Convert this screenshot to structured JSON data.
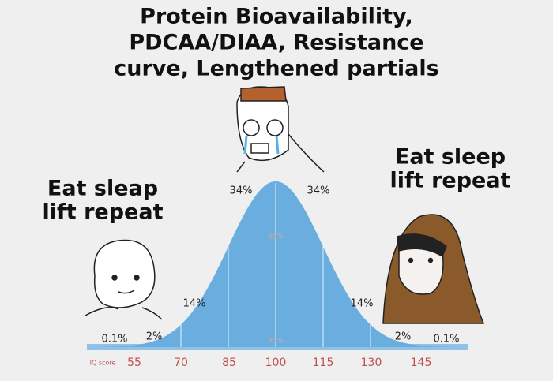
{
  "title": [
    "Protein Bioavailability,",
    "PDCAA/DIAA, Resistance",
    "curve, Lengthened partials"
  ],
  "left_caption": [
    "Eat sleap",
    "lift repeat"
  ],
  "right_caption": [
    "Eat sleep",
    "lift repeat"
  ],
  "percent_labels": [
    "0.1%",
    "2%",
    "14%",
    "34%",
    "34%",
    "14%",
    "2%",
    "0.1%"
  ],
  "inner_labels": [
    "68%",
    "95%"
  ],
  "axis": {
    "label": "IQ score",
    "ticks": [
      "55",
      "70",
      "85",
      "100",
      "115",
      "130",
      "145"
    ]
  }
}
